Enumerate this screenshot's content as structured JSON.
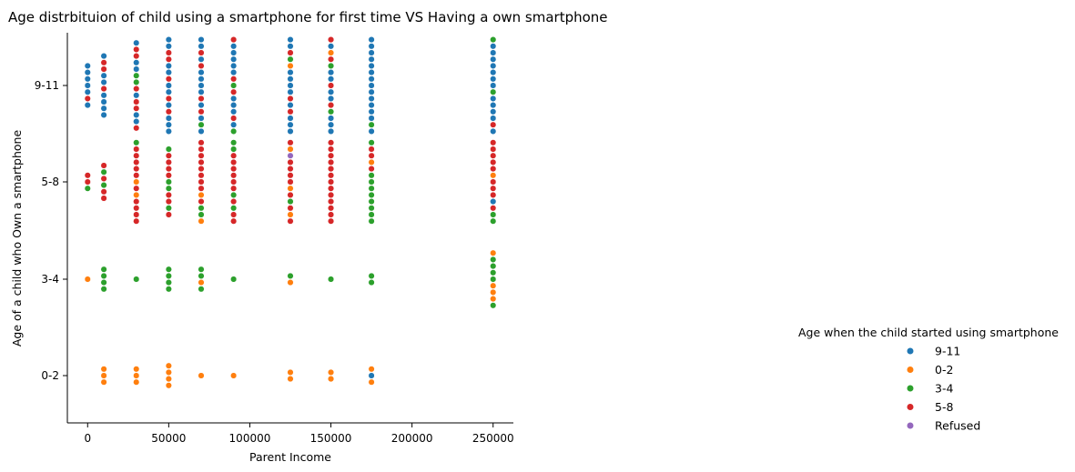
{
  "colors": {
    "9-11": "#1f77b4",
    "0-2": "#ff7f0e",
    "3-4": "#2ca02c",
    "5-8": "#d62728",
    "Refused": "#9467bd"
  },
  "chart_data": {
    "type": "scatter",
    "title": "Age distrbituion of child using a smartphone for first time VS Having a own smartphone",
    "xlabel": "Parent Income",
    "ylabel": "Age of a child who Own a smartphone",
    "xlim": [
      -12500,
      262500
    ],
    "x_ticks": [
      0,
      50000,
      100000,
      150000,
      200000,
      250000
    ],
    "y_categories": [
      "0-2",
      "3-4",
      "5-8",
      "9-11"
    ],
    "legend": {
      "title": "Age when the child started using smartphone",
      "placement": "right",
      "entries": [
        "9-11",
        "0-2",
        "3-4",
        "5-8",
        "Refused"
      ]
    },
    "groups": [
      {
        "x": 0,
        "y": "9-11",
        "colors": [
          "9-11",
          "9-11",
          "9-11",
          "9-11",
          "9-11",
          "5-8",
          "9-11"
        ]
      },
      {
        "x": 10000,
        "y": "9-11",
        "colors": [
          "9-11",
          "5-8",
          "5-8",
          "9-11",
          "9-11",
          "5-8",
          "9-11",
          "9-11",
          "9-11",
          "9-11"
        ]
      },
      {
        "x": 30000,
        "y": "9-11",
        "colors": [
          "9-11",
          "5-8",
          "5-8",
          "9-11",
          "9-11",
          "3-4",
          "3-4",
          "5-8",
          "9-11",
          "5-8",
          "5-8",
          "9-11",
          "9-11",
          "5-8"
        ]
      },
      {
        "x": 50000,
        "y": "9-11",
        "colors": [
          "9-11",
          "9-11",
          "5-8",
          "5-8",
          "9-11",
          "9-11",
          "5-8",
          "9-11",
          "9-11",
          "5-8",
          "9-11",
          "5-8",
          "9-11",
          "9-11",
          "9-11"
        ]
      },
      {
        "x": 70000,
        "y": "9-11",
        "colors": [
          "9-11",
          "9-11",
          "5-8",
          "9-11",
          "5-8",
          "9-11",
          "9-11",
          "9-11",
          "9-11",
          "5-8",
          "9-11",
          "5-8",
          "9-11",
          "3-4",
          "9-11"
        ]
      },
      {
        "x": 90000,
        "y": "9-11",
        "colors": [
          "5-8",
          "9-11",
          "9-11",
          "9-11",
          "9-11",
          "9-11",
          "5-8",
          "3-4",
          "5-8",
          "9-11",
          "9-11",
          "9-11",
          "5-8",
          "9-11",
          "3-4"
        ]
      },
      {
        "x": 125000,
        "y": "9-11",
        "colors": [
          "9-11",
          "9-11",
          "5-8",
          "3-4",
          "0-2",
          "9-11",
          "9-11",
          "9-11",
          "9-11",
          "5-8",
          "9-11",
          "5-8",
          "9-11",
          "9-11",
          "9-11"
        ]
      },
      {
        "x": 150000,
        "y": "9-11",
        "colors": [
          "5-8",
          "9-11",
          "0-2",
          "5-8",
          "3-4",
          "9-11",
          "9-11",
          "5-8",
          "9-11",
          "9-11",
          "5-8",
          "3-4",
          "9-11",
          "9-11",
          "9-11"
        ]
      },
      {
        "x": 175000,
        "y": "9-11",
        "colors": [
          "9-11",
          "9-11",
          "9-11",
          "9-11",
          "9-11",
          "9-11",
          "9-11",
          "9-11",
          "9-11",
          "9-11",
          "9-11",
          "9-11",
          "9-11",
          "3-4",
          "9-11"
        ]
      },
      {
        "x": 250000,
        "y": "9-11",
        "colors": [
          "3-4",
          "9-11",
          "9-11",
          "9-11",
          "9-11",
          "9-11",
          "9-11",
          "9-11",
          "3-4",
          "9-11",
          "9-11",
          "9-11",
          "9-11",
          "5-8",
          "9-11"
        ]
      },
      {
        "x": 0,
        "y": "5-8",
        "colors": [
          "5-8",
          "5-8",
          "3-4"
        ]
      },
      {
        "x": 10000,
        "y": "5-8",
        "colors": [
          "5-8",
          "3-4",
          "5-8",
          "3-4",
          "5-8",
          "5-8"
        ]
      },
      {
        "x": 30000,
        "y": "5-8",
        "colors": [
          "3-4",
          "5-8",
          "5-8",
          "5-8",
          "5-8",
          "5-8",
          "0-2",
          "5-8",
          "0-2",
          "5-8",
          "5-8",
          "5-8",
          "5-8"
        ]
      },
      {
        "x": 50000,
        "y": "5-8",
        "colors": [
          "3-4",
          "5-8",
          "5-8",
          "5-8",
          "5-8",
          "3-4",
          "3-4",
          "5-8",
          "5-8",
          "3-4",
          "5-8"
        ]
      },
      {
        "x": 70000,
        "y": "5-8",
        "colors": [
          "5-8",
          "5-8",
          "5-8",
          "5-8",
          "5-8",
          "5-8",
          "5-8",
          "5-8",
          "0-2",
          "5-8",
          "3-4",
          "3-4",
          "0-2"
        ]
      },
      {
        "x": 90000,
        "y": "5-8",
        "colors": [
          "3-4",
          "3-4",
          "5-8",
          "5-8",
          "5-8",
          "5-8",
          "5-8",
          "5-8",
          "3-4",
          "5-8",
          "3-4",
          "5-8",
          "5-8"
        ]
      },
      {
        "x": 125000,
        "y": "5-8",
        "colors": [
          "5-8",
          "0-2",
          "Refused",
          "5-8",
          "5-8",
          "5-8",
          "5-8",
          "0-2",
          "5-8",
          "3-4",
          "5-8",
          "0-2",
          "5-8"
        ]
      },
      {
        "x": 150000,
        "y": "5-8",
        "colors": [
          "5-8",
          "5-8",
          "5-8",
          "5-8",
          "5-8",
          "5-8",
          "5-8",
          "5-8",
          "5-8",
          "5-8",
          "5-8",
          "5-8",
          "5-8"
        ]
      },
      {
        "x": 175000,
        "y": "5-8",
        "colors": [
          "3-4",
          "5-8",
          "5-8",
          "0-2",
          "5-8",
          "3-4",
          "3-4",
          "3-4",
          "3-4",
          "3-4",
          "3-4",
          "3-4",
          "3-4"
        ]
      },
      {
        "x": 250000,
        "y": "5-8",
        "colors": [
          "5-8",
          "5-8",
          "5-8",
          "5-8",
          "5-8",
          "0-2",
          "5-8",
          "5-8",
          "5-8",
          "9-11",
          "5-8",
          "3-4",
          "3-4"
        ]
      },
      {
        "x": 0,
        "y": "3-4",
        "colors": [
          "0-2"
        ]
      },
      {
        "x": 10000,
        "y": "3-4",
        "colors": [
          "3-4",
          "3-4",
          "3-4",
          "3-4"
        ]
      },
      {
        "x": 30000,
        "y": "3-4",
        "colors": [
          "3-4"
        ]
      },
      {
        "x": 50000,
        "y": "3-4",
        "colors": [
          "3-4",
          "3-4",
          "3-4",
          "3-4"
        ]
      },
      {
        "x": 70000,
        "y": "3-4",
        "colors": [
          "3-4",
          "3-4",
          "0-2",
          "3-4"
        ]
      },
      {
        "x": 90000,
        "y": "3-4",
        "colors": [
          "3-4"
        ]
      },
      {
        "x": 125000,
        "y": "3-4",
        "colors": [
          "3-4",
          "0-2"
        ]
      },
      {
        "x": 150000,
        "y": "3-4",
        "colors": [
          "3-4"
        ]
      },
      {
        "x": 175000,
        "y": "3-4",
        "colors": [
          "3-4",
          "3-4"
        ]
      },
      {
        "x": 250000,
        "y": "3-4",
        "colors": [
          "0-2",
          "3-4",
          "3-4",
          "3-4",
          "3-4",
          "0-2",
          "0-2",
          "0-2",
          "3-4"
        ]
      },
      {
        "x": 10000,
        "y": "0-2",
        "colors": [
          "0-2",
          "0-2",
          "0-2"
        ]
      },
      {
        "x": 30000,
        "y": "0-2",
        "colors": [
          "0-2",
          "0-2",
          "0-2"
        ]
      },
      {
        "x": 50000,
        "y": "0-2",
        "colors": [
          "0-2",
          "0-2",
          "0-2",
          "0-2"
        ]
      },
      {
        "x": 70000,
        "y": "0-2",
        "colors": [
          "0-2"
        ]
      },
      {
        "x": 90000,
        "y": "0-2",
        "colors": [
          "0-2"
        ]
      },
      {
        "x": 125000,
        "y": "0-2",
        "colors": [
          "0-2",
          "0-2"
        ]
      },
      {
        "x": 150000,
        "y": "0-2",
        "colors": [
          "0-2",
          "0-2"
        ]
      },
      {
        "x": 175000,
        "y": "0-2",
        "colors": [
          "0-2",
          "9-11",
          "0-2"
        ]
      }
    ]
  }
}
